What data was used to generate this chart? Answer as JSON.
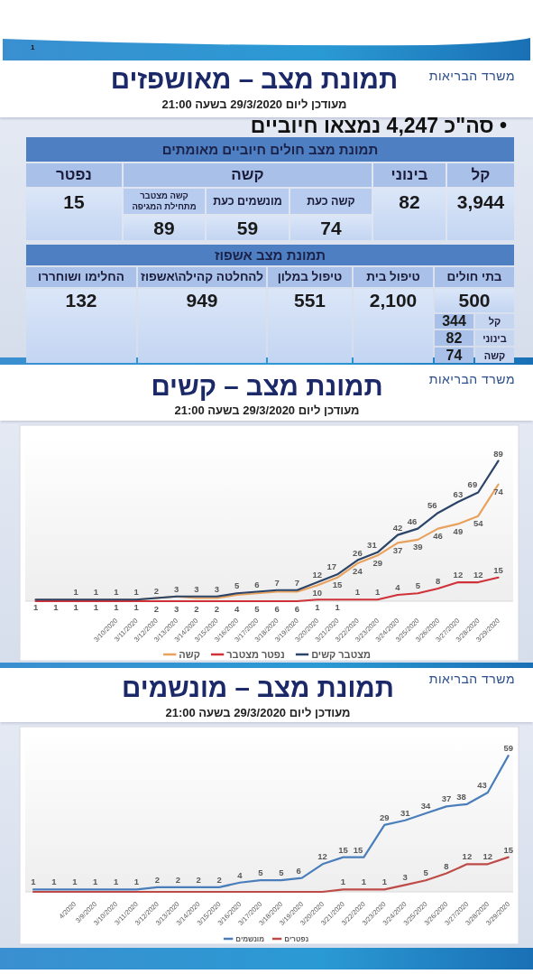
{
  "chart_data": [
    {
      "type": "other",
      "title": "תמונת מצב – מאושפזים",
      "subtitle": "מעודכן ליום 29/3/2020 בשעה 21:00",
      "annotations": [
        "משרד הבריאות",
        "1",
        "• סה\"כ 4,247 נמצאו חיוביים",
        "תמונת מצב חולים חיוביים מאומתים",
        "קל",
        "בינוני",
        "קשה",
        "נפטר",
        "3,944",
        "82",
        "קשה כעת",
        "מונשמים כעת",
        "קשה מצטבר מתחילת המגיפה",
        "15",
        "74",
        "59",
        "89",
        "תמונת מצב אשפוז",
        "בתי חולים",
        "טיפול בית",
        "טיפול במלון",
        "להחלטה קהילה\\אשפוז",
        "החלימו ושוחררו",
        "500",
        "2,100",
        "551",
        "949",
        "132",
        "קל",
        "344",
        "בינוני",
        "82",
        "קשה",
        "74"
      ]
    },
    {
      "type": "line",
      "title": "תמונת מצב – קשים",
      "subtitle": "מעודכן ליום 29/3/2020 בשעה 21:00",
      "annotations": [
        "משרד הבריאות"
      ],
      "legend": "bottom",
      "tick_labels": "x",
      "categories": [
        null,
        null,
        null,
        null,
        "3/10/2020",
        "3/11/2020",
        "3/12/2020",
        "3/13/2020",
        "3/14/2020",
        "3/15/2020",
        "3/16/2020",
        "3/17/2020",
        "3/18/2020",
        "3/19/2020",
        "3/20/2020",
        "3/21/2020",
        "3/22/2020",
        "3/23/2020",
        "3/24/2020",
        "3/25/2020",
        "3/26/2020",
        "3/27/2020",
        "3/28/2020",
        "3/29/2020"
      ],
      "series": [
        {
          "name": "קשה",
          "color": "#e8a25e",
          "values": [
            1,
            1,
            1,
            1,
            1,
            1,
            2,
            3,
            2,
            2,
            4,
            5,
            6,
            6,
            10,
            15,
            24,
            29,
            37,
            39,
            46,
            49,
            54,
            74
          ],
          "value_labels": [
            "1",
            "1",
            "1",
            "1",
            "1",
            "1",
            "2",
            "3",
            "2",
            "2",
            "4",
            "5",
            "6",
            "6",
            "10",
            "15",
            "24",
            "29",
            "37",
            "39",
            "46",
            "49",
            "54",
            "74"
          ]
        },
        {
          "name": "נפטר מצטבר",
          "color": "#d0323a",
          "values": [
            0,
            0,
            0,
            0,
            0,
            0,
            0,
            0,
            0,
            0,
            0,
            0,
            0,
            0,
            1,
            1,
            1,
            1,
            4,
            5,
            8,
            12,
            12,
            15
          ],
          "value_labels": [
            null,
            null,
            null,
            null,
            null,
            null,
            null,
            null,
            null,
            null,
            null,
            null,
            null,
            null,
            "1",
            "1",
            "1",
            "1",
            "4",
            "5",
            "8",
            "12",
            "12",
            "15"
          ]
        },
        {
          "name": "מצטבר קשים",
          "color": "#2b4468",
          "values": [
            1,
            1,
            1,
            1,
            1,
            1,
            2,
            3,
            3,
            3,
            5,
            6,
            7,
            7,
            12,
            17,
            26,
            31,
            42,
            46,
            56,
            63,
            69,
            89
          ],
          "value_labels": [
            null,
            null,
            "1",
            "1",
            "1",
            "1",
            "2",
            "3",
            "3",
            "3",
            "5",
            "6",
            "7",
            "7",
            "12",
            "17",
            "26",
            "31",
            "42",
            "46",
            "56",
            "63",
            "69",
            "89"
          ]
        }
      ]
    },
    {
      "type": "line",
      "title": "תמונת מצב – מונשמים",
      "subtitle": "מעודכן ליום 29/3/2020 בשעה 21:00",
      "annotations": [
        "משרד הבריאות"
      ],
      "legend": "bottom",
      "tick_labels": "x",
      "categories": [
        null,
        null,
        "4/2020",
        "3/9/2020",
        "3/10/2020",
        "3/11/2020",
        "3/12/2020",
        "3/13/2020",
        "3/14/2020",
        "3/15/2020",
        "3/16/2020",
        "3/17/2020",
        "3/18/2020",
        "3/19/2020",
        "3/20/2020",
        "3/21/2020",
        "3/22/2020",
        "3/23/2020",
        "3/24/2020",
        "3/25/2020",
        "3/26/2020",
        "3/27/2020",
        "3/28/2020",
        "3/29/2020"
      ],
      "series": [
        {
          "name": "מונשמים",
          "color": "#4a7ebb",
          "values": [
            1,
            1,
            1,
            1,
            1,
            1,
            2,
            2,
            2,
            2,
            4,
            5,
            5,
            6,
            12,
            15,
            15,
            29,
            31,
            34,
            37,
            38,
            43,
            59
          ],
          "value_labels": [
            "1",
            "1",
            "1",
            "1",
            "1",
            "1",
            "2",
            "2",
            "2",
            "2",
            "4",
            "5",
            "5",
            "6",
            "12",
            "15",
            "15",
            "29",
            "31",
            "34",
            "37",
            "38",
            "43",
            "59"
          ]
        },
        {
          "name": "נפטרים",
          "color": "#be4b48",
          "values": [
            0,
            0,
            0,
            0,
            0,
            0,
            0,
            0,
            0,
            0,
            0,
            0,
            0,
            0,
            0,
            1,
            1,
            1,
            3,
            5,
            8,
            12,
            12,
            15
          ],
          "value_labels": [
            null,
            null,
            null,
            null,
            null,
            null,
            null,
            null,
            null,
            null,
            null,
            null,
            null,
            null,
            null,
            "1",
            "1",
            "1",
            "3",
            "5",
            "8",
            "12",
            "12",
            "15"
          ]
        }
      ]
    }
  ]
}
